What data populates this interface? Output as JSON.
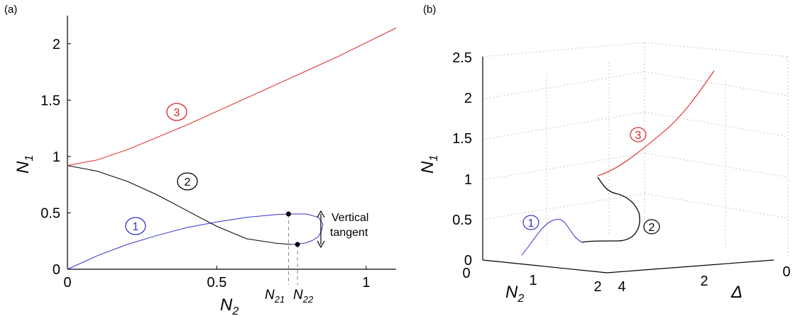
{
  "panels": {
    "a": {
      "label": "(a)"
    },
    "b": {
      "label": "(b)"
    }
  },
  "colors": {
    "branch1": "#3333cc",
    "branch2": "#000000",
    "branch3": "#dd2222"
  },
  "chart_data": [
    {
      "panel": "a",
      "type": "line",
      "xlabel": {
        "main": "N",
        "sub": "2"
      },
      "ylabel": {
        "main": "N",
        "sub": "1"
      },
      "xlim": [
        0,
        1.1
      ],
      "ylim": [
        0,
        2.25
      ],
      "xticks": [
        "0",
        "0.5",
        "1"
      ],
      "xtick_values": [
        0,
        0.5,
        1
      ],
      "yticks": [
        "0",
        "0.5",
        "1",
        "1.5",
        "2"
      ],
      "ytick_values": [
        0,
        0.5,
        1,
        1.5,
        2
      ],
      "grid": false,
      "series": [
        {
          "label": "1",
          "color": "#3333cc",
          "x": [
            0,
            0.1,
            0.2,
            0.3,
            0.4,
            0.5,
            0.6,
            0.7,
            0.74,
            0.8,
            0.84,
            0.855,
            0.85,
            0.84,
            0.82,
            0.8,
            0.77,
            0.75
          ],
          "y": [
            0,
            0.12,
            0.22,
            0.3,
            0.37,
            0.42,
            0.46,
            0.485,
            0.49,
            0.49,
            0.46,
            0.4,
            0.34,
            0.29,
            0.255,
            0.235,
            0.225,
            0.22
          ]
        },
        {
          "label": "2",
          "color": "#000000",
          "x": [
            0,
            0.1,
            0.2,
            0.3,
            0.4,
            0.5,
            0.6,
            0.7,
            0.75
          ],
          "y": [
            0.92,
            0.87,
            0.78,
            0.66,
            0.52,
            0.38,
            0.27,
            0.23,
            0.22
          ]
        },
        {
          "label": "3",
          "color": "#dd2222",
          "x": [
            0,
            0.1,
            0.2,
            0.3,
            0.4,
            0.5,
            0.6,
            0.7,
            0.8,
            0.9,
            1.0,
            1.1
          ],
          "y": [
            0.92,
            0.97,
            1.06,
            1.17,
            1.28,
            1.4,
            1.52,
            1.64,
            1.76,
            1.88,
            2.01,
            2.14
          ]
        }
      ],
      "points": [
        {
          "name": "N21",
          "x": 0.74,
          "y": 0.49,
          "label_main": "N",
          "label_sub": "21"
        },
        {
          "name": "N22",
          "x": 0.77,
          "y": 0.22,
          "label_main": "N",
          "label_sub": "22"
        }
      ],
      "annotation": {
        "line1": "Vertical",
        "line2": "tangent"
      }
    },
    {
      "panel": "b",
      "type": "line3d",
      "xlabel": {
        "main": "N",
        "sub": "2"
      },
      "ylabel": {
        "main": "N",
        "sub": "1"
      },
      "zlabel": "Δ",
      "n2_ticks": [
        "0",
        "1",
        "2"
      ],
      "n2_tick_values": [
        0,
        1,
        2
      ],
      "delta_ticks": [
        "4",
        "2",
        "0"
      ],
      "delta_tick_values": [
        4,
        2,
        0
      ],
      "n1_ticks": [
        "0",
        "0.5",
        "1",
        "1.5",
        "2",
        "2.5"
      ],
      "n1_tick_values": [
        0,
        0.5,
        1,
        1.5,
        2,
        2.5
      ],
      "grid": true,
      "branch_labels": [
        "1",
        "2",
        "3"
      ]
    }
  ]
}
